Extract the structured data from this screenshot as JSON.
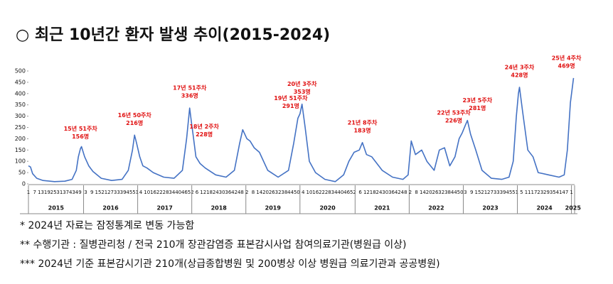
{
  "chart_data": {
    "type": "line",
    "title": "○ 최근 10년간 환자 발생 추이(2015-2024)",
    "x": [
      0,
      2,
      4,
      8,
      14,
      25,
      35,
      42,
      46,
      48,
      50,
      51,
      54,
      58,
      62,
      70,
      80,
      90,
      96,
      100,
      102,
      104,
      107,
      110,
      114,
      120,
      130,
      140,
      148,
      152,
      155,
      157,
      158,
      161,
      165,
      170,
      180,
      190,
      198,
      203,
      206,
      210,
      213,
      217,
      222,
      230,
      240,
      250,
      255,
      259,
      261,
      263,
      266,
      270,
      276,
      285,
      295,
      303,
      308,
      313,
      318,
      321,
      325,
      330,
      340,
      350,
      360,
      365,
      368,
      372,
      378,
      383,
      390,
      395,
      400,
      405,
      410,
      414,
      417,
      420,
      422,
      425,
      430,
      436,
      445,
      455,
      462,
      466,
      469,
      471,
      472,
      475,
      480,
      485,
      490,
      500,
      510,
      515,
      518,
      521,
      524
    ],
    "values": [
      80,
      75,
      45,
      25,
      15,
      10,
      12,
      20,
      60,
      120,
      156,
      165,
      120,
      80,
      55,
      25,
      15,
      20,
      60,
      150,
      216,
      180,
      120,
      80,
      70,
      50,
      30,
      25,
      60,
      200,
      336,
      260,
      228,
      120,
      90,
      70,
      40,
      30,
      60,
      180,
      240,
      200,
      190,
      160,
      140,
      60,
      30,
      60,
      180,
      291,
      310,
      353,
      250,
      100,
      50,
      20,
      10,
      40,
      100,
      140,
      150,
      183,
      130,
      120,
      60,
      30,
      20,
      40,
      190,
      130,
      150,
      100,
      60,
      150,
      160,
      80,
      120,
      200,
      226,
      260,
      281,
      220,
      150,
      60,
      25,
      20,
      30,
      100,
      300,
      400,
      428,
      320,
      150,
      120,
      50,
      40,
      30,
      40,
      150,
      360,
      469
    ],
    "color": "#4472c4",
    "xlim": [
      0,
      525
    ],
    "ylim": [
      0,
      500
    ],
    "yticks": [
      0,
      50,
      100,
      150,
      200,
      250,
      300,
      350,
      400,
      450,
      500
    ],
    "year_groups": [
      {
        "label": "2015",
        "start": 0,
        "end": 53,
        "weeks": [
          1,
          7,
          13,
          19,
          25,
          31,
          37,
          43,
          49
        ]
      },
      {
        "label": "2016",
        "start": 53,
        "end": 105,
        "weeks": [
          3,
          9,
          15,
          21,
          27,
          33,
          39,
          45,
          51
        ]
      },
      {
        "label": "2017",
        "start": 105,
        "end": 157,
        "weeks": [
          4,
          10,
          16,
          22,
          28,
          34,
          40,
          46,
          52
        ]
      },
      {
        "label": "2018",
        "start": 157,
        "end": 209,
        "weeks": [
          6,
          12,
          18,
          24,
          30,
          36,
          42,
          48
        ]
      },
      {
        "label": "2019",
        "start": 209,
        "end": 261,
        "weeks": [
          2,
          8,
          14,
          20,
          26,
          32,
          38,
          44,
          50
        ]
      },
      {
        "label": "2020",
        "start": 261,
        "end": 314,
        "weeks": [
          4,
          10,
          16,
          22,
          28,
          34,
          40,
          46,
          52
        ]
      },
      {
        "label": "2021",
        "start": 314,
        "end": 366,
        "weeks": [
          6,
          12,
          18,
          24,
          30,
          36,
          42,
          48
        ]
      },
      {
        "label": "2022",
        "start": 366,
        "end": 418,
        "weeks": [
          2,
          8,
          14,
          20,
          26,
          32,
          38,
          44,
          50
        ]
      },
      {
        "label": "2023",
        "start": 418,
        "end": 470,
        "weeks": [
          3,
          9,
          15,
          21,
          27,
          33,
          39,
          45,
          51
        ]
      },
      {
        "label": "2024",
        "start": 470,
        "end": 522,
        "weeks": [
          5,
          11,
          17,
          23,
          29,
          35,
          41,
          47
        ]
      },
      {
        "label": "2025",
        "start": 522,
        "end": 525,
        "weeks": [
          1
        ]
      }
    ],
    "annotations": [
      {
        "lines": [
          "15년 51주차",
          "156명"
        ],
        "x": 50,
        "y": 156
      },
      {
        "lines": [
          "16년 50주차",
          "216명"
        ],
        "x": 102,
        "y": 216
      },
      {
        "lines": [
          "17년 51주차",
          "336명"
        ],
        "x": 155,
        "y": 336
      },
      {
        "lines": [
          "18년 2주차",
          "228명"
        ],
        "x": 158,
        "y": 228
      },
      {
        "lines": [
          "19년 51주차",
          "291명"
        ],
        "x": 259,
        "y": 291
      },
      {
        "lines": [
          "20년 3주차",
          "353명"
        ],
        "x": 263,
        "y": 353
      },
      {
        "lines": [
          "21년 8주차",
          "183명"
        ],
        "x": 321,
        "y": 183
      },
      {
        "lines": [
          "22년 53주차",
          "226명"
        ],
        "x": 417,
        "y": 226
      },
      {
        "lines": [
          "23년 5주차",
          "281명"
        ],
        "x": 422,
        "y": 281
      },
      {
        "lines": [
          "24년 3주차",
          "428명"
        ],
        "x": 472,
        "y": 428
      },
      {
        "lines": [
          "25년 4주차",
          "469명"
        ],
        "x": 524,
        "y": 469
      }
    ],
    "annotation_color": "#e01010",
    "notes": [
      "*  2024년 자료는 잠정통계로 변동 가능함",
      "**  수행기관 : 질병관리청 / 전국 210개 장관감염증 표본감시사업 참여의료기관(병원급 이상)",
      "***  2024년 기준 표본감시기관 210개(상급종합병원 및 200병상 이상 병원급 의료기관과 공공병원)"
    ]
  }
}
